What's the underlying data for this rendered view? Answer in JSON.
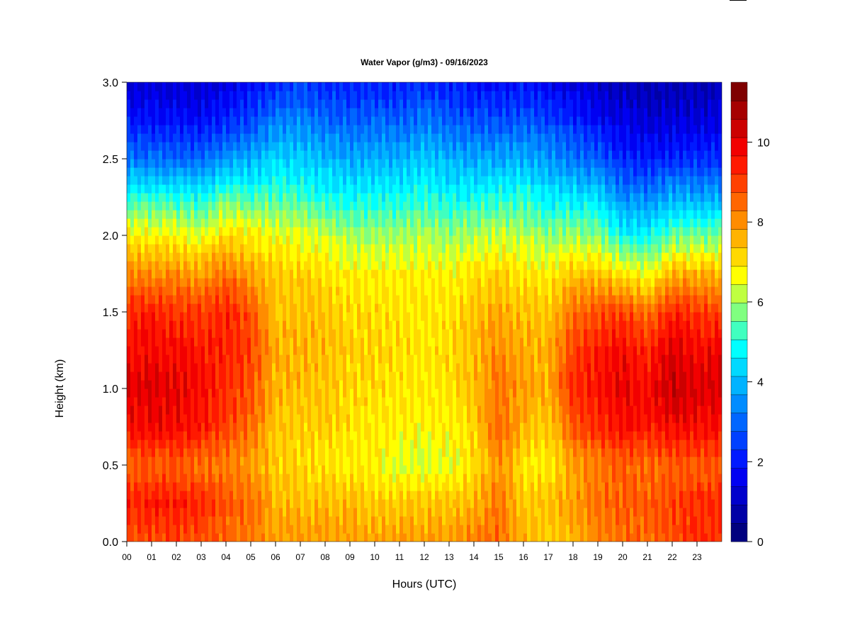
{
  "chart_data": {
    "type": "heatmap",
    "title": "Water Vapor (g/m3) - 09/16/2023",
    "xlabel": "Hours (UTC)",
    "ylabel": "Height (km)",
    "x_ticks": [
      "00",
      "01",
      "02",
      "03",
      "04",
      "05",
      "06",
      "07",
      "08",
      "09",
      "10",
      "11",
      "12",
      "13",
      "14",
      "15",
      "16",
      "17",
      "18",
      "19",
      "20",
      "21",
      "22",
      "23"
    ],
    "y_ticks": [
      "0.0",
      "0.5",
      "1.0",
      "1.5",
      "2.0",
      "2.5",
      "3.0"
    ],
    "xlim": [
      0,
      24
    ],
    "ylim": [
      0,
      3.0
    ],
    "colorbar": {
      "range": [
        0,
        11.5
      ],
      "ticks": [
        "0",
        "2",
        "4",
        "6",
        "8",
        "10"
      ],
      "colors": [
        "#00007f",
        "#0000a6",
        "#0000cc",
        "#0000f2",
        "#0019ff",
        "#0040ff",
        "#0066ff",
        "#008cff",
        "#00b3ff",
        "#00d9ff",
        "#00ffff",
        "#40ffbf",
        "#80ff80",
        "#bfff40",
        "#ffff00",
        "#ffd900",
        "#ffb300",
        "#ff8c00",
        "#ff6600",
        "#ff4000",
        "#ff1900",
        "#f20000",
        "#cc0000",
        "#a60000",
        "#7f0000"
      ]
    },
    "hours": [
      0,
      1,
      2,
      3,
      4,
      5,
      6,
      7,
      8,
      9,
      10,
      11,
      12,
      13,
      14,
      15,
      16,
      17,
      18,
      19,
      20,
      21,
      22,
      23
    ],
    "height_km": [
      0.0,
      0.25,
      0.5,
      0.75,
      1.0,
      1.25,
      1.5,
      1.75,
      2.0,
      2.25,
      2.5,
      2.75,
      3.0
    ],
    "values": [
      [
        8.8,
        9.3,
        8.6,
        9.7,
        10.0,
        9.7,
        9.3,
        8.1,
        6.8,
        5.2,
        3.2,
        2.0,
        1.2
      ],
      [
        8.8,
        9.5,
        8.6,
        9.8,
        10.1,
        9.8,
        9.4,
        8.1,
        6.8,
        5.1,
        3.1,
        1.9,
        1.2
      ],
      [
        8.9,
        9.5,
        8.6,
        9.8,
        10.0,
        9.7,
        9.2,
        8.0,
        6.7,
        5.0,
        3.0,
        1.9,
        1.2
      ],
      [
        8.8,
        9.3,
        8.4,
        9.5,
        9.7,
        9.5,
        9.0,
        7.8,
        6.5,
        4.9,
        3.0,
        1.8,
        1.2
      ],
      [
        8.5,
        8.7,
        8.2,
        9.0,
        9.2,
        9.4,
        9.4,
        8.4,
        7.2,
        5.6,
        3.6,
        2.2,
        1.4
      ],
      [
        8.2,
        8.5,
        7.9,
        8.5,
        8.8,
        9.0,
        8.8,
        7.8,
        6.8,
        5.3,
        3.8,
        2.6,
        1.8
      ],
      [
        7.9,
        7.6,
        7.2,
        7.4,
        7.6,
        7.6,
        7.4,
        7.2,
        6.6,
        5.4,
        4.4,
        3.2,
        2.3
      ],
      [
        7.9,
        7.5,
        7.1,
        7.2,
        7.5,
        7.6,
        7.5,
        7.2,
        6.5,
        5.2,
        4.2,
        3.4,
        2.4
      ],
      [
        7.8,
        7.5,
        7.0,
        7.3,
        7.4,
        7.5,
        7.4,
        7.1,
        6.3,
        5.0,
        4.0,
        3.0,
        2.2
      ],
      [
        7.8,
        7.5,
        6.8,
        7.0,
        7.1,
        7.2,
        7.1,
        6.8,
        6.0,
        4.8,
        3.8,
        2.9,
        2.1
      ],
      [
        7.8,
        7.3,
        6.8,
        6.9,
        7.1,
        7.2,
        7.1,
        6.8,
        6.0,
        4.9,
        3.9,
        3.0,
        2.1
      ],
      [
        7.8,
        7.3,
        6.4,
        6.8,
        7.0,
        7.1,
        7.0,
        6.8,
        6.0,
        4.9,
        3.9,
        2.9,
        2.0
      ],
      [
        7.8,
        7.4,
        6.4,
        6.7,
        6.9,
        7.0,
        7.0,
        6.8,
        6.1,
        5.1,
        4.2,
        3.2,
        2.3
      ],
      [
        7.9,
        7.4,
        6.5,
        6.8,
        7.0,
        7.1,
        7.0,
        6.7,
        5.9,
        4.8,
        3.9,
        2.9,
        2.0
      ],
      [
        8.3,
        7.6,
        7.0,
        7.2,
        7.4,
        7.5,
        7.4,
        7.0,
        6.1,
        4.9,
        3.8,
        2.7,
        1.9
      ],
      [
        8.5,
        8.3,
        8.0,
        8.5,
        8.4,
        8.1,
        7.8,
        7.2,
        6.3,
        5.0,
        3.8,
        2.7,
        1.8
      ],
      [
        7.6,
        7.3,
        7.0,
        7.6,
        7.8,
        7.7,
        7.4,
        7.0,
        6.2,
        5.1,
        3.9,
        2.8,
        1.9
      ],
      [
        7.3,
        7.4,
        6.8,
        7.2,
        7.6,
        7.6,
        7.3,
        6.8,
        5.8,
        4.6,
        3.6,
        2.6,
        1.6
      ],
      [
        7.4,
        7.8,
        7.8,
        8.8,
        9.4,
        9.0,
        8.4,
        7.4,
        6.0,
        4.6,
        3.2,
        2.2,
        1.3
      ],
      [
        8.2,
        8.5,
        8.2,
        9.2,
        9.6,
        9.4,
        8.8,
        7.4,
        5.8,
        4.4,
        2.9,
        1.8,
        1.1
      ],
      [
        8.4,
        8.6,
        8.6,
        9.7,
        10.1,
        9.8,
        9.0,
        7.0,
        4.8,
        3.4,
        2.2,
        1.4,
        0.9
      ],
      [
        8.5,
        8.6,
        8.4,
        9.4,
        9.7,
        9.3,
        8.4,
        6.6,
        4.8,
        3.4,
        2.0,
        1.3,
        0.8
      ],
      [
        8.8,
        8.9,
        8.6,
        9.8,
        10.4,
        10.1,
        9.4,
        7.6,
        5.6,
        3.9,
        2.2,
        1.3,
        0.8
      ],
      [
        9.2,
        9.2,
        8.7,
        9.7,
        10.2,
        9.8,
        9.1,
        7.6,
        5.6,
        3.8,
        2.3,
        1.3,
        0.8
      ]
    ]
  }
}
